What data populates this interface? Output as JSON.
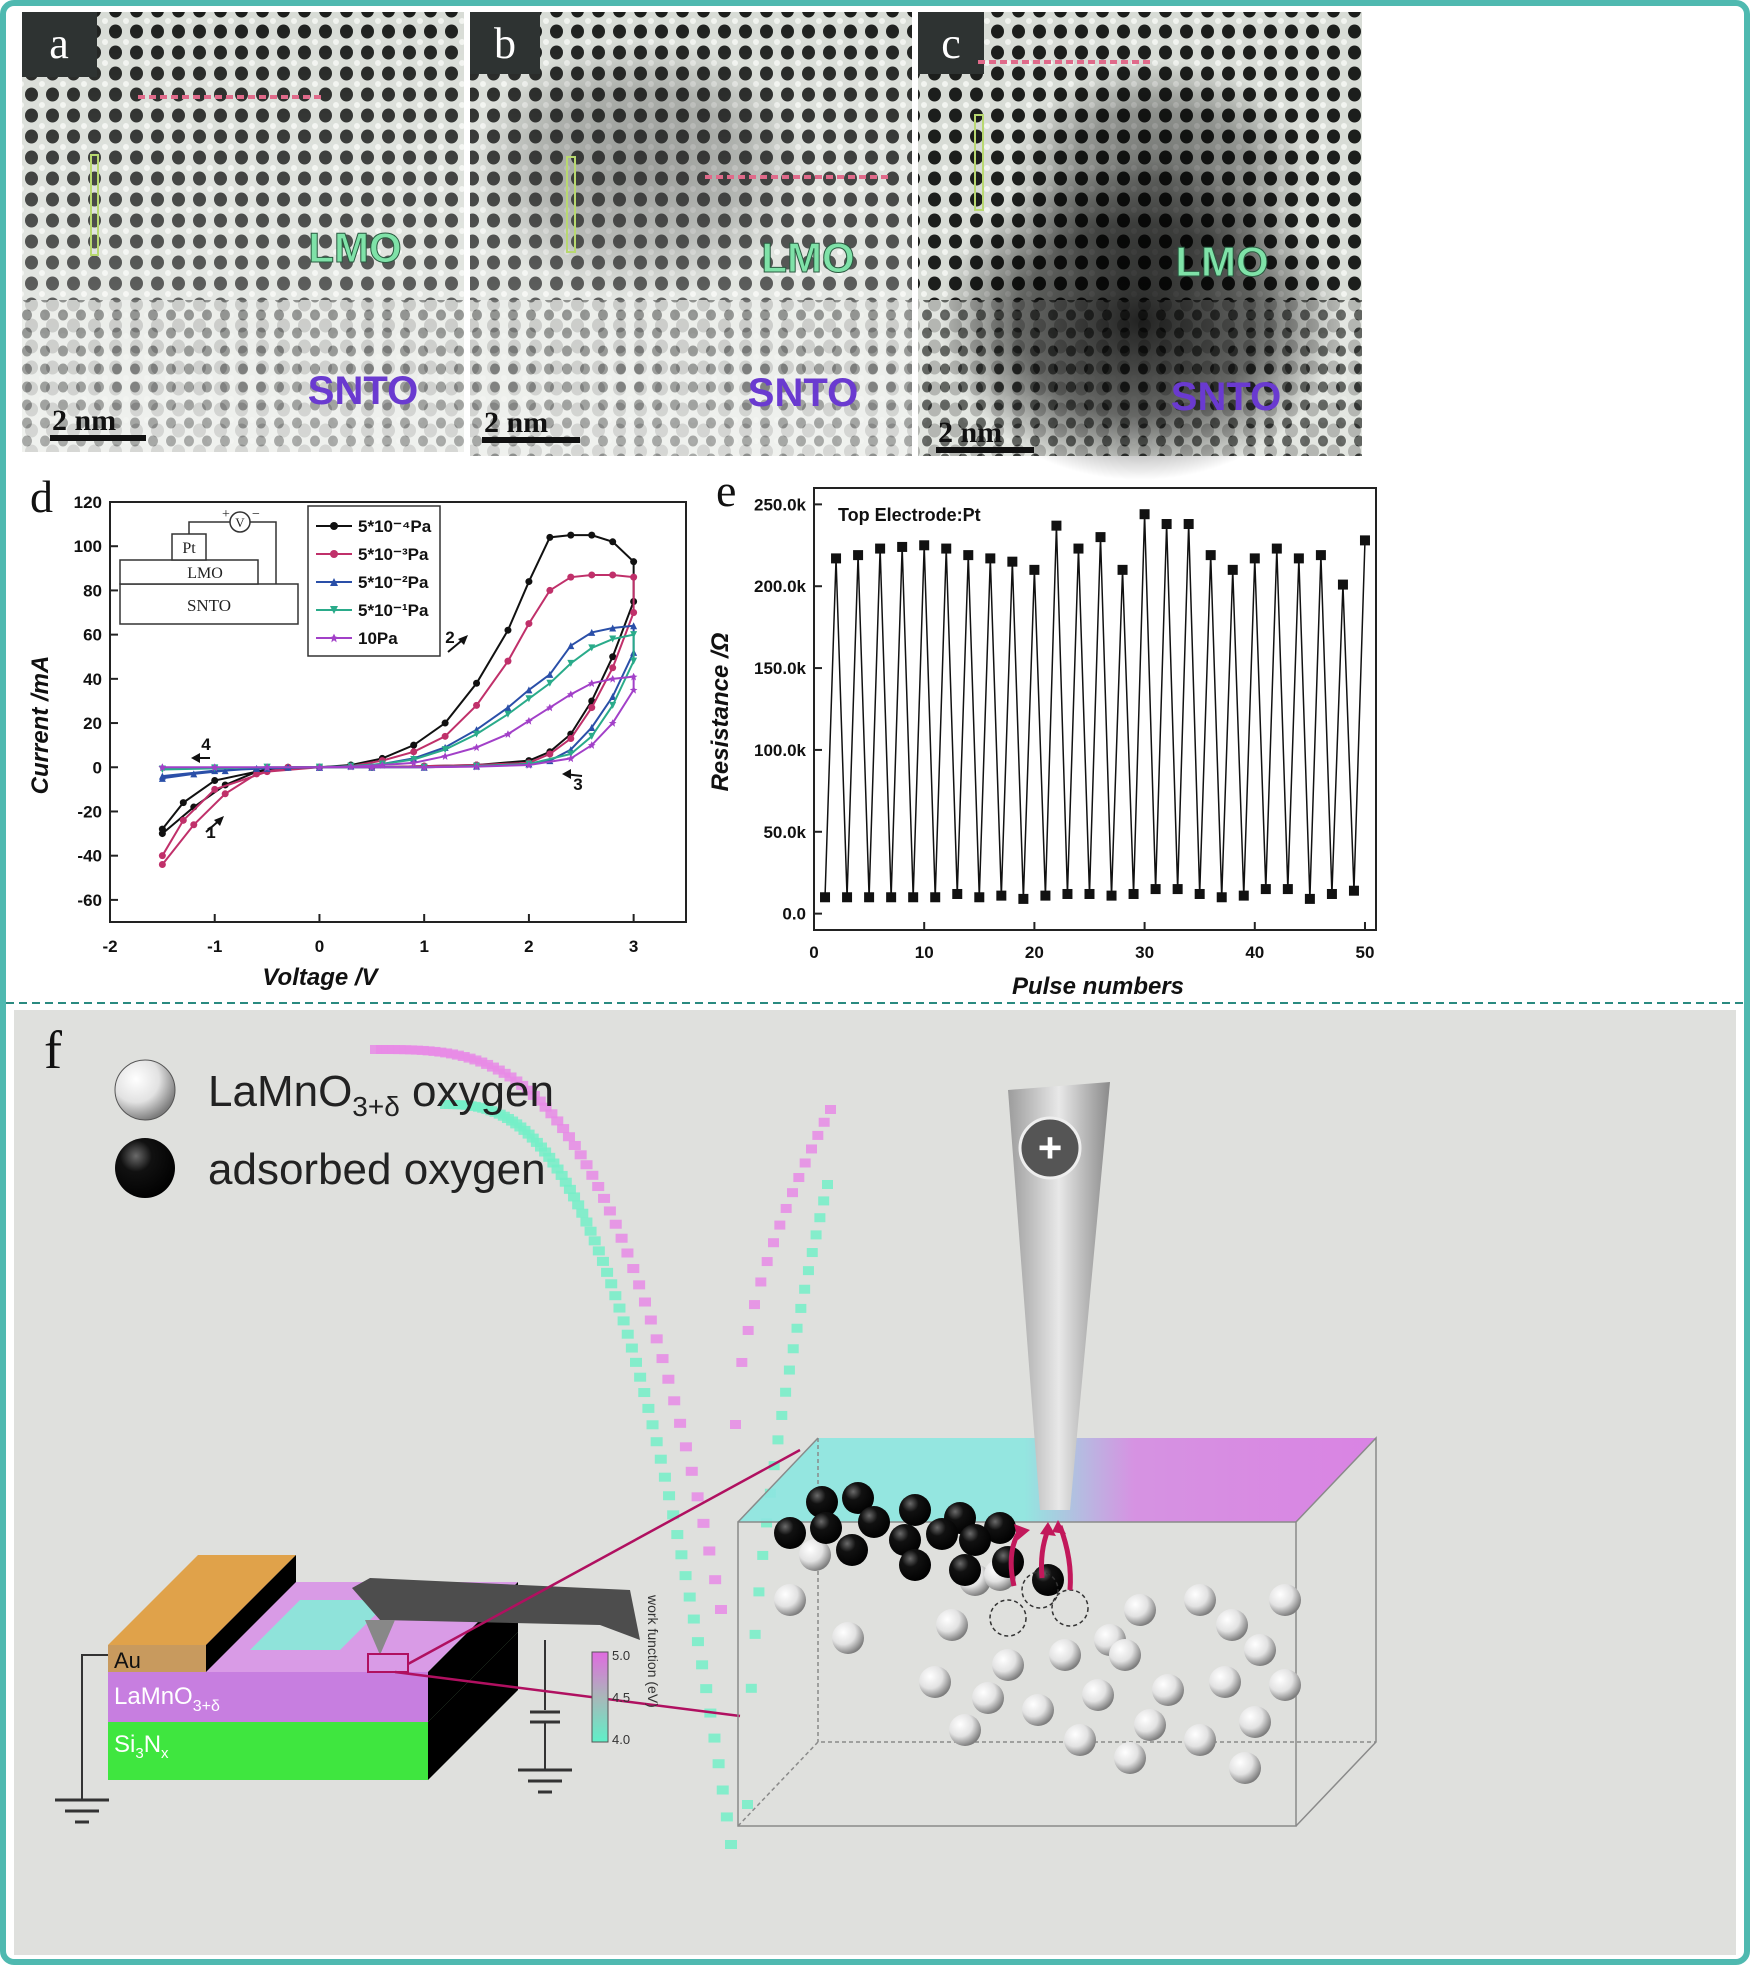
{
  "panels": {
    "a": {
      "letter": "a",
      "lmo": "LMO",
      "snto": "SNTO",
      "scale": "2 nm"
    },
    "b": {
      "letter": "b",
      "lmo": "LMO",
      "snto": "SNTO",
      "scale": "2 nm"
    },
    "c": {
      "letter": "c",
      "lmo": "LMO",
      "snto": "SNTO",
      "scale": "2 nm"
    }
  },
  "panel_d": {
    "letter": "d",
    "inset": {
      "v": "V",
      "plus": "+",
      "minus": "−",
      "pt": "Pt",
      "lmo": "LMO",
      "snto": "SNTO"
    },
    "arrows": [
      "1",
      "2",
      "3",
      "4"
    ]
  },
  "panel_e": {
    "letter": "e"
  },
  "panel_f": {
    "letter": "f",
    "legend": [
      {
        "label_main": "LaMnO",
        "label_sub": "3+δ",
        "label_tail": " oxygen",
        "color": "#ffffff"
      },
      {
        "label": "adsorbed oxygen",
        "color": "#000000"
      }
    ],
    "layers": {
      "au": "Au",
      "lmo_main": "LaMnO",
      "lmo_sub": "3+δ",
      "sin_main": "Si",
      "sin_sub1": "3",
      "sin_mid": "N",
      "sin_sub2": "x"
    },
    "colorbar": {
      "title": "work function (eV)",
      "ticks": [
        "5.0",
        "4.5",
        "4.0"
      ]
    },
    "tip_symbol": "+"
  },
  "chart_data": [
    {
      "type": "line",
      "panel": "d",
      "xlabel": "Voltage /V",
      "ylabel": "Current /mA",
      "xlim": [
        -2,
        3.5
      ],
      "ylim": [
        -70,
        120
      ],
      "xticks": [
        "-2",
        "-1",
        "0",
        "1",
        "2",
        "3"
      ],
      "yticks": [
        "-60",
        "-40",
        "-20",
        "0",
        "20",
        "40",
        "60",
        "80",
        "100",
        "120"
      ],
      "legend_position": "top-right",
      "series": [
        {
          "name": "5*10⁻⁴Pa",
          "color": "#111111",
          "marker": "circle",
          "x": [
            -1.5,
            -1.2,
            -0.9,
            -0.6,
            -0.3,
            0,
            0.3,
            0.6,
            0.9,
            1.2,
            1.5,
            1.8,
            2.0,
            2.2,
            2.4,
            2.6,
            2.8,
            3.0,
            3.0,
            2.8,
            2.6,
            2.4,
            2.2,
            2.0,
            1.5,
            1.0,
            0.5,
            0,
            -0.5,
            -1.0,
            -1.3,
            -1.5
          ],
          "y": [
            -30,
            -18,
            -8,
            -2,
            0,
            0,
            1,
            4,
            10,
            20,
            38,
            62,
            84,
            104,
            105,
            105,
            102,
            93,
            75,
            50,
            30,
            15,
            7,
            3,
            1,
            0.5,
            0,
            0,
            -1,
            -6,
            -16,
            -28
          ]
        },
        {
          "name": "5*10⁻³Pa",
          "color": "#c0306a",
          "marker": "circle",
          "x": [
            -1.5,
            -1.2,
            -0.9,
            -0.6,
            -0.3,
            0,
            0.3,
            0.6,
            0.9,
            1.2,
            1.5,
            1.8,
            2.0,
            2.2,
            2.4,
            2.6,
            2.8,
            3.0,
            3.0,
            2.8,
            2.6,
            2.4,
            2.2,
            2.0,
            1.5,
            1.0,
            0.5,
            0,
            -0.5,
            -1.0,
            -1.3,
            -1.5
          ],
          "y": [
            -44,
            -26,
            -12,
            -3,
            0,
            0,
            0.5,
            3,
            7,
            14,
            28,
            48,
            65,
            80,
            86,
            87,
            87,
            86,
            70,
            45,
            27,
            13,
            6,
            2,
            1,
            0.5,
            0,
            0,
            -2,
            -10,
            -24,
            -40
          ]
        },
        {
          "name": "5*10⁻²Pa",
          "color": "#2a4fa8",
          "marker": "triangle",
          "x": [
            -1.5,
            -1.2,
            -0.9,
            -0.6,
            -0.3,
            0,
            0.3,
            0.6,
            0.9,
            1.2,
            1.5,
            1.8,
            2.0,
            2.2,
            2.4,
            2.6,
            2.8,
            3.0,
            3.0,
            2.8,
            2.6,
            2.4,
            2.2,
            2.0,
            1.5,
            1.0,
            0.5,
            0,
            -0.5,
            -1.0,
            -1.5
          ],
          "y": [
            -5,
            -3,
            -1.5,
            -0.5,
            0,
            0,
            0.5,
            1.5,
            4,
            9,
            17,
            27,
            35,
            42,
            55,
            61,
            63,
            64,
            52,
            32,
            18,
            8,
            3,
            1.5,
            0.5,
            0,
            0,
            0,
            -0.5,
            -1.5,
            -4
          ]
        },
        {
          "name": "5*10⁻¹Pa",
          "color": "#2aab8a",
          "marker": "triangle-down",
          "x": [
            -1.5,
            -1.0,
            -0.5,
            0,
            0.3,
            0.6,
            0.9,
            1.2,
            1.5,
            1.8,
            2.0,
            2.2,
            2.4,
            2.6,
            2.8,
            3.0,
            3.0,
            2.8,
            2.6,
            2.4,
            2.0,
            1.5,
            1.0,
            0.5,
            0,
            -0.5,
            -1.0,
            -1.5
          ],
          "y": [
            -1,
            -0.5,
            0,
            0,
            0.5,
            1.5,
            3.5,
            8,
            15,
            24,
            31,
            38,
            47,
            54,
            58,
            60,
            48,
            28,
            14,
            6,
            1.5,
            0.5,
            0,
            0,
            0,
            0,
            -0.3,
            -0.8
          ]
        },
        {
          "name": "10Pa",
          "color": "#a240c8",
          "marker": "star",
          "x": [
            -1.5,
            -1.0,
            -0.5,
            0,
            0.3,
            0.6,
            0.9,
            1.2,
            1.5,
            1.8,
            2.0,
            2.2,
            2.4,
            2.6,
            2.8,
            3.0,
            3.0,
            2.8,
            2.6,
            2.4,
            2.0,
            1.5,
            1.0,
            0.5,
            0,
            -0.5,
            -1.0,
            -1.5
          ],
          "y": [
            0,
            0,
            0,
            0,
            0.3,
            1,
            2,
            5,
            9,
            15,
            21,
            27,
            33,
            38,
            40,
            41,
            35,
            20,
            10,
            4,
            1,
            0.3,
            0,
            0,
            0,
            0,
            0,
            0
          ]
        }
      ]
    },
    {
      "type": "line",
      "panel": "e",
      "xlabel": "Pulse numbers",
      "ylabel": "Resistance /Ω",
      "xlim": [
        0,
        51
      ],
      "ylim": [
        -10000,
        260000
      ],
      "xticks": [
        "0",
        "10",
        "20",
        "30",
        "40",
        "50"
      ],
      "yticks": [
        "0.0",
        "50.0k",
        "100.0k",
        "150.0k",
        "200.0k",
        "250.0k"
      ],
      "annotation": "Top Electrode:Pt",
      "series": [
        {
          "name": "",
          "color": "#111111",
          "marker": "square",
          "x": [
            1,
            2,
            3,
            4,
            5,
            6,
            7,
            8,
            9,
            10,
            11,
            12,
            13,
            14,
            15,
            16,
            17,
            18,
            19,
            20,
            21,
            22,
            23,
            24,
            25,
            26,
            27,
            28,
            29,
            30,
            31,
            32,
            33,
            34,
            35,
            36,
            37,
            38,
            39,
            40,
            41,
            42,
            43,
            44,
            45,
            46,
            47,
            48,
            49,
            50
          ],
          "y": [
            10000,
            217000,
            10000,
            219000,
            10000,
            223000,
            10000,
            224000,
            10000,
            225000,
            10000,
            223000,
            12000,
            219000,
            10000,
            217000,
            11000,
            215000,
            9000,
            210000,
            11000,
            237000,
            12000,
            223000,
            12000,
            230000,
            11000,
            210000,
            12000,
            244000,
            15000,
            238000,
            15000,
            238000,
            12000,
            219000,
            10000,
            210000,
            11000,
            217000,
            15000,
            223000,
            15000,
            217000,
            9000,
            219000,
            12000,
            201000,
            14000,
            228000
          ]
        }
      ]
    }
  ]
}
